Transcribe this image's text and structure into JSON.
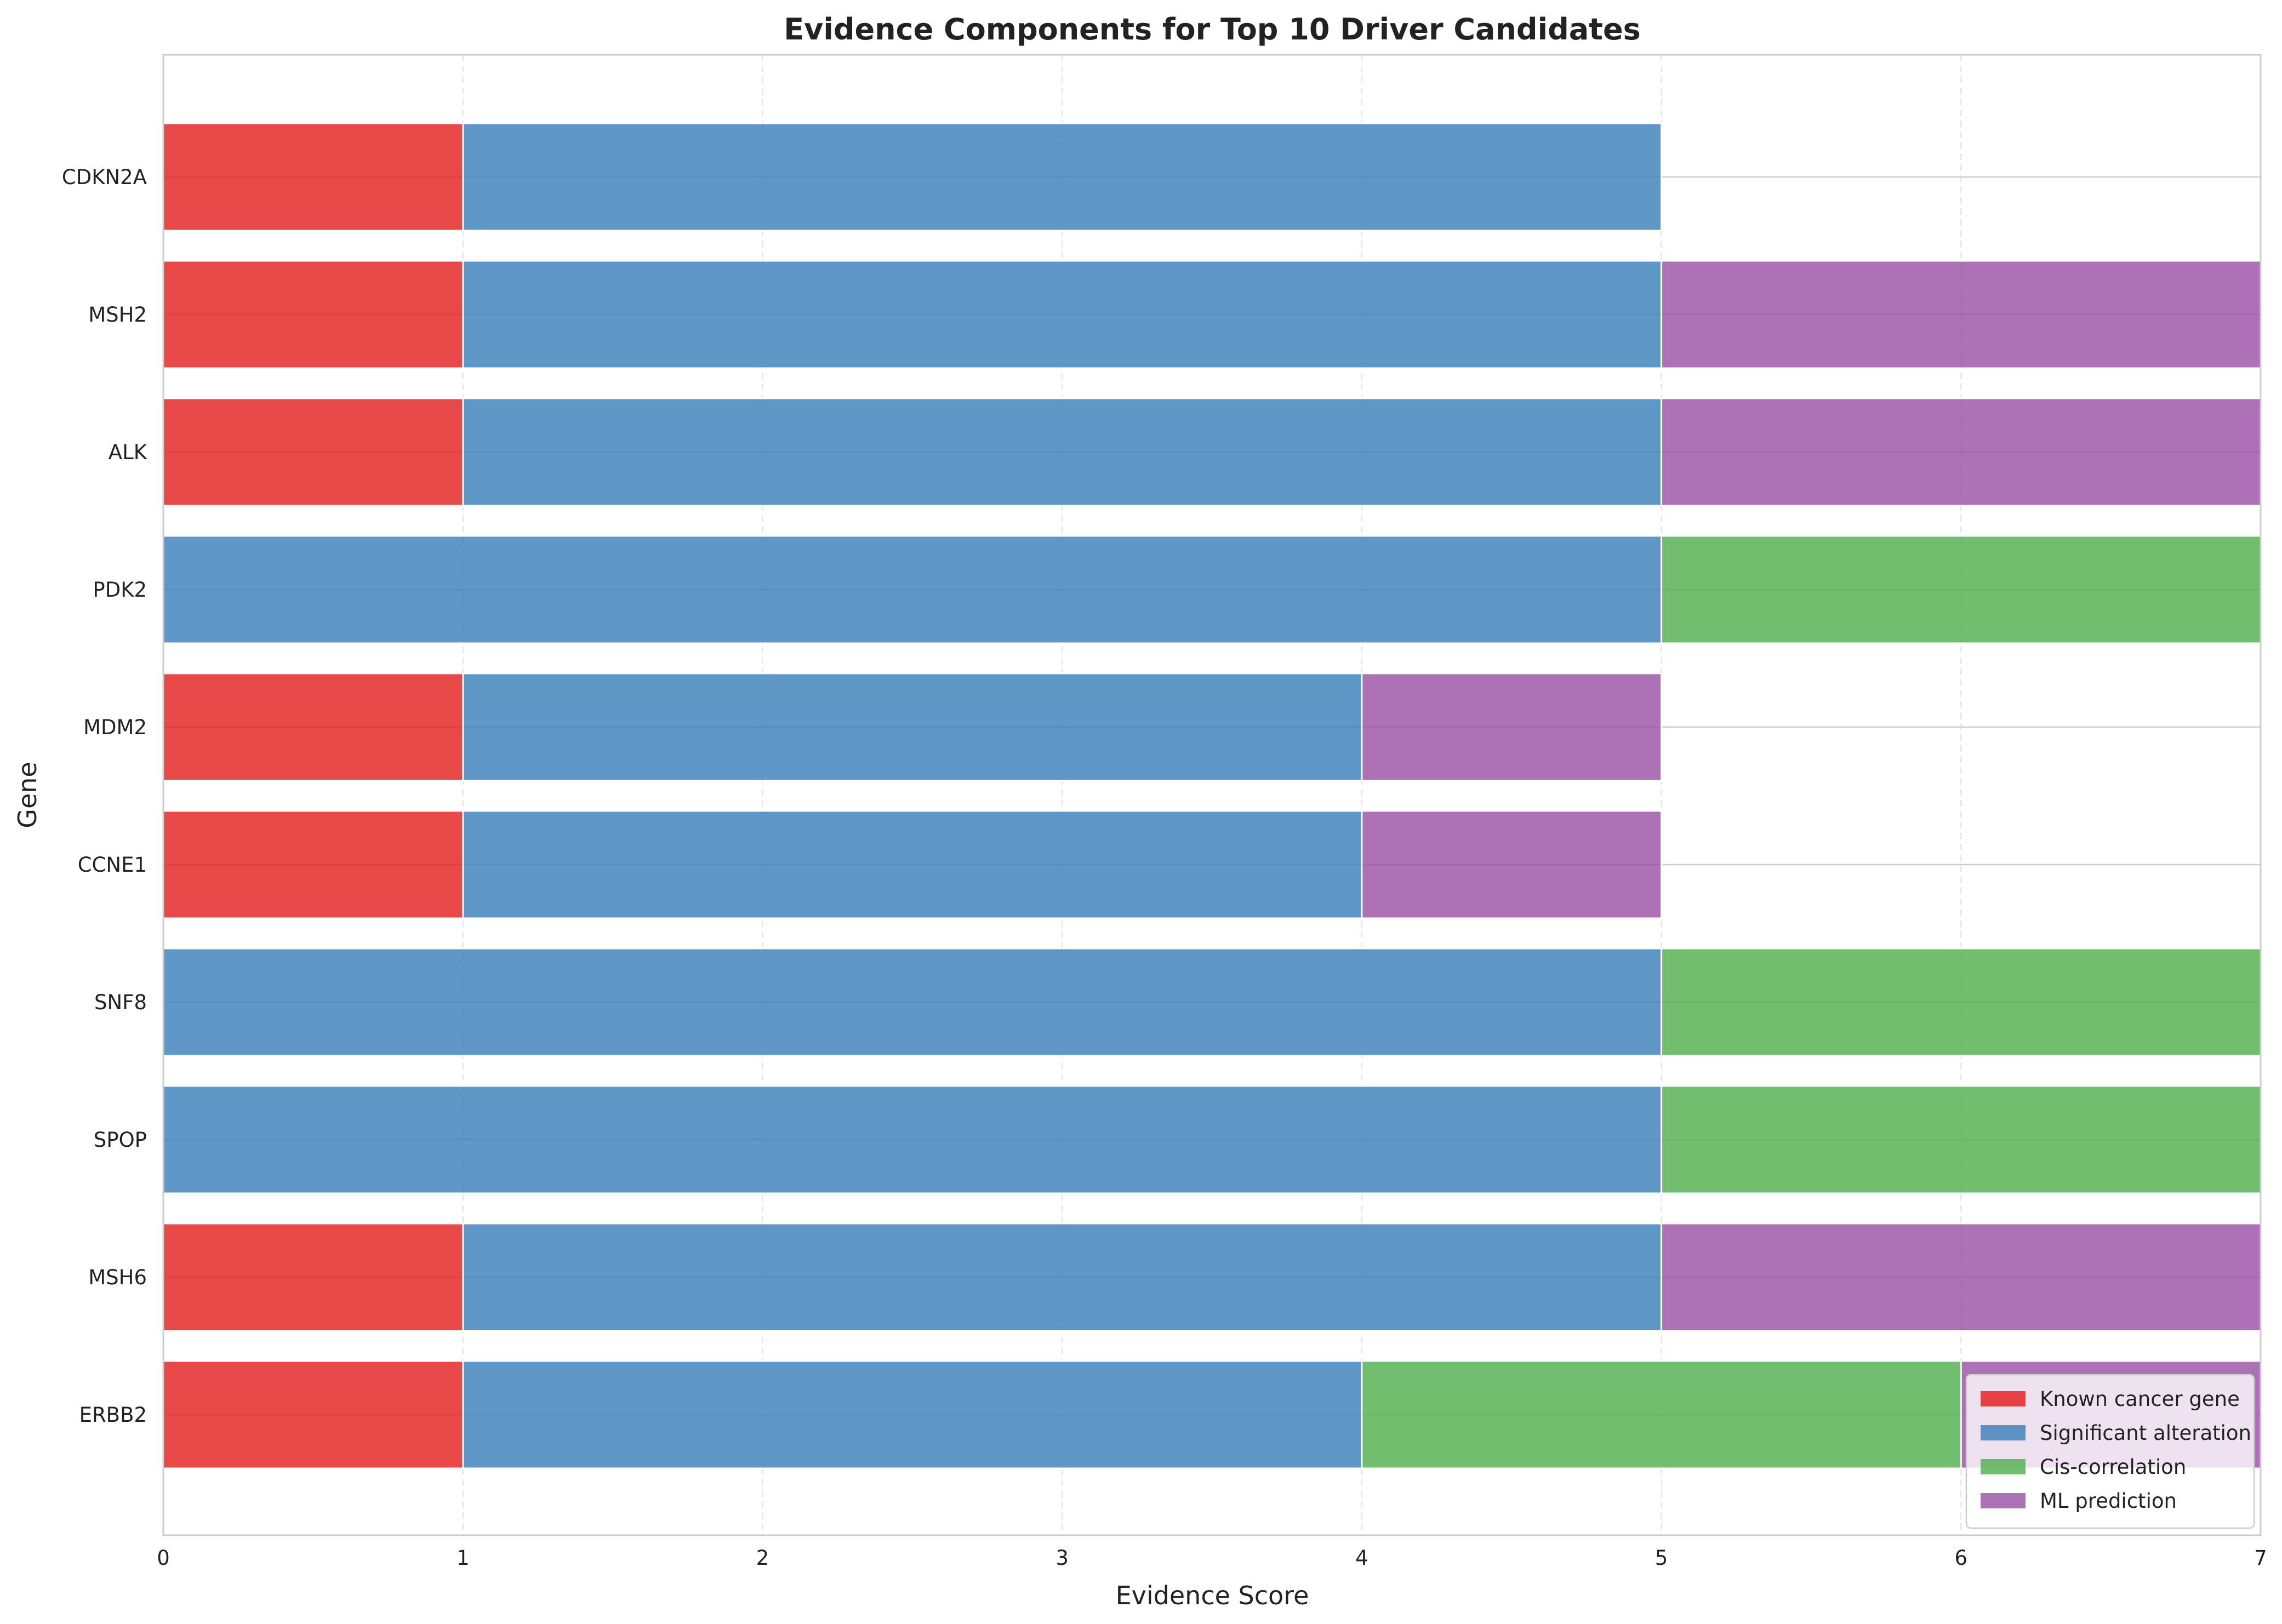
{
  "chart_data": {
    "type": "bar",
    "orientation": "horizontal",
    "stacked": true,
    "title": "Evidence Components for Top 10 Driver Candidates",
    "xlabel": "Evidence Score",
    "ylabel": "Gene",
    "xlim": [
      0,
      7
    ],
    "xticks": [
      "0",
      "1",
      "2",
      "3",
      "4",
      "5",
      "6",
      "7"
    ],
    "grid": true,
    "legend_position": "lower-right",
    "categories": [
      "CDKN2A",
      "MSH2",
      "ALK",
      "PDK2",
      "MDM2",
      "CCNE1",
      "SNF8",
      "SPOP",
      "MSH6",
      "ERBB2"
    ],
    "series": [
      {
        "name": "Known cancer gene",
        "color": "#e41a1c",
        "values": [
          1,
          1,
          1,
          0,
          1,
          1,
          0,
          0,
          1,
          1
        ]
      },
      {
        "name": "Significant alteration",
        "color": "#377eb8",
        "values": [
          4,
          4,
          4,
          5,
          3,
          3,
          5,
          5,
          4,
          3
        ]
      },
      {
        "name": "Cis-correlation",
        "color": "#4daf4a",
        "values": [
          0,
          0,
          0,
          2,
          0,
          0,
          2,
          2,
          0,
          2
        ]
      },
      {
        "name": "ML prediction",
        "color": "#984ea3",
        "values": [
          0,
          2,
          2,
          0,
          1,
          1,
          0,
          0,
          2,
          1
        ]
      }
    ]
  }
}
